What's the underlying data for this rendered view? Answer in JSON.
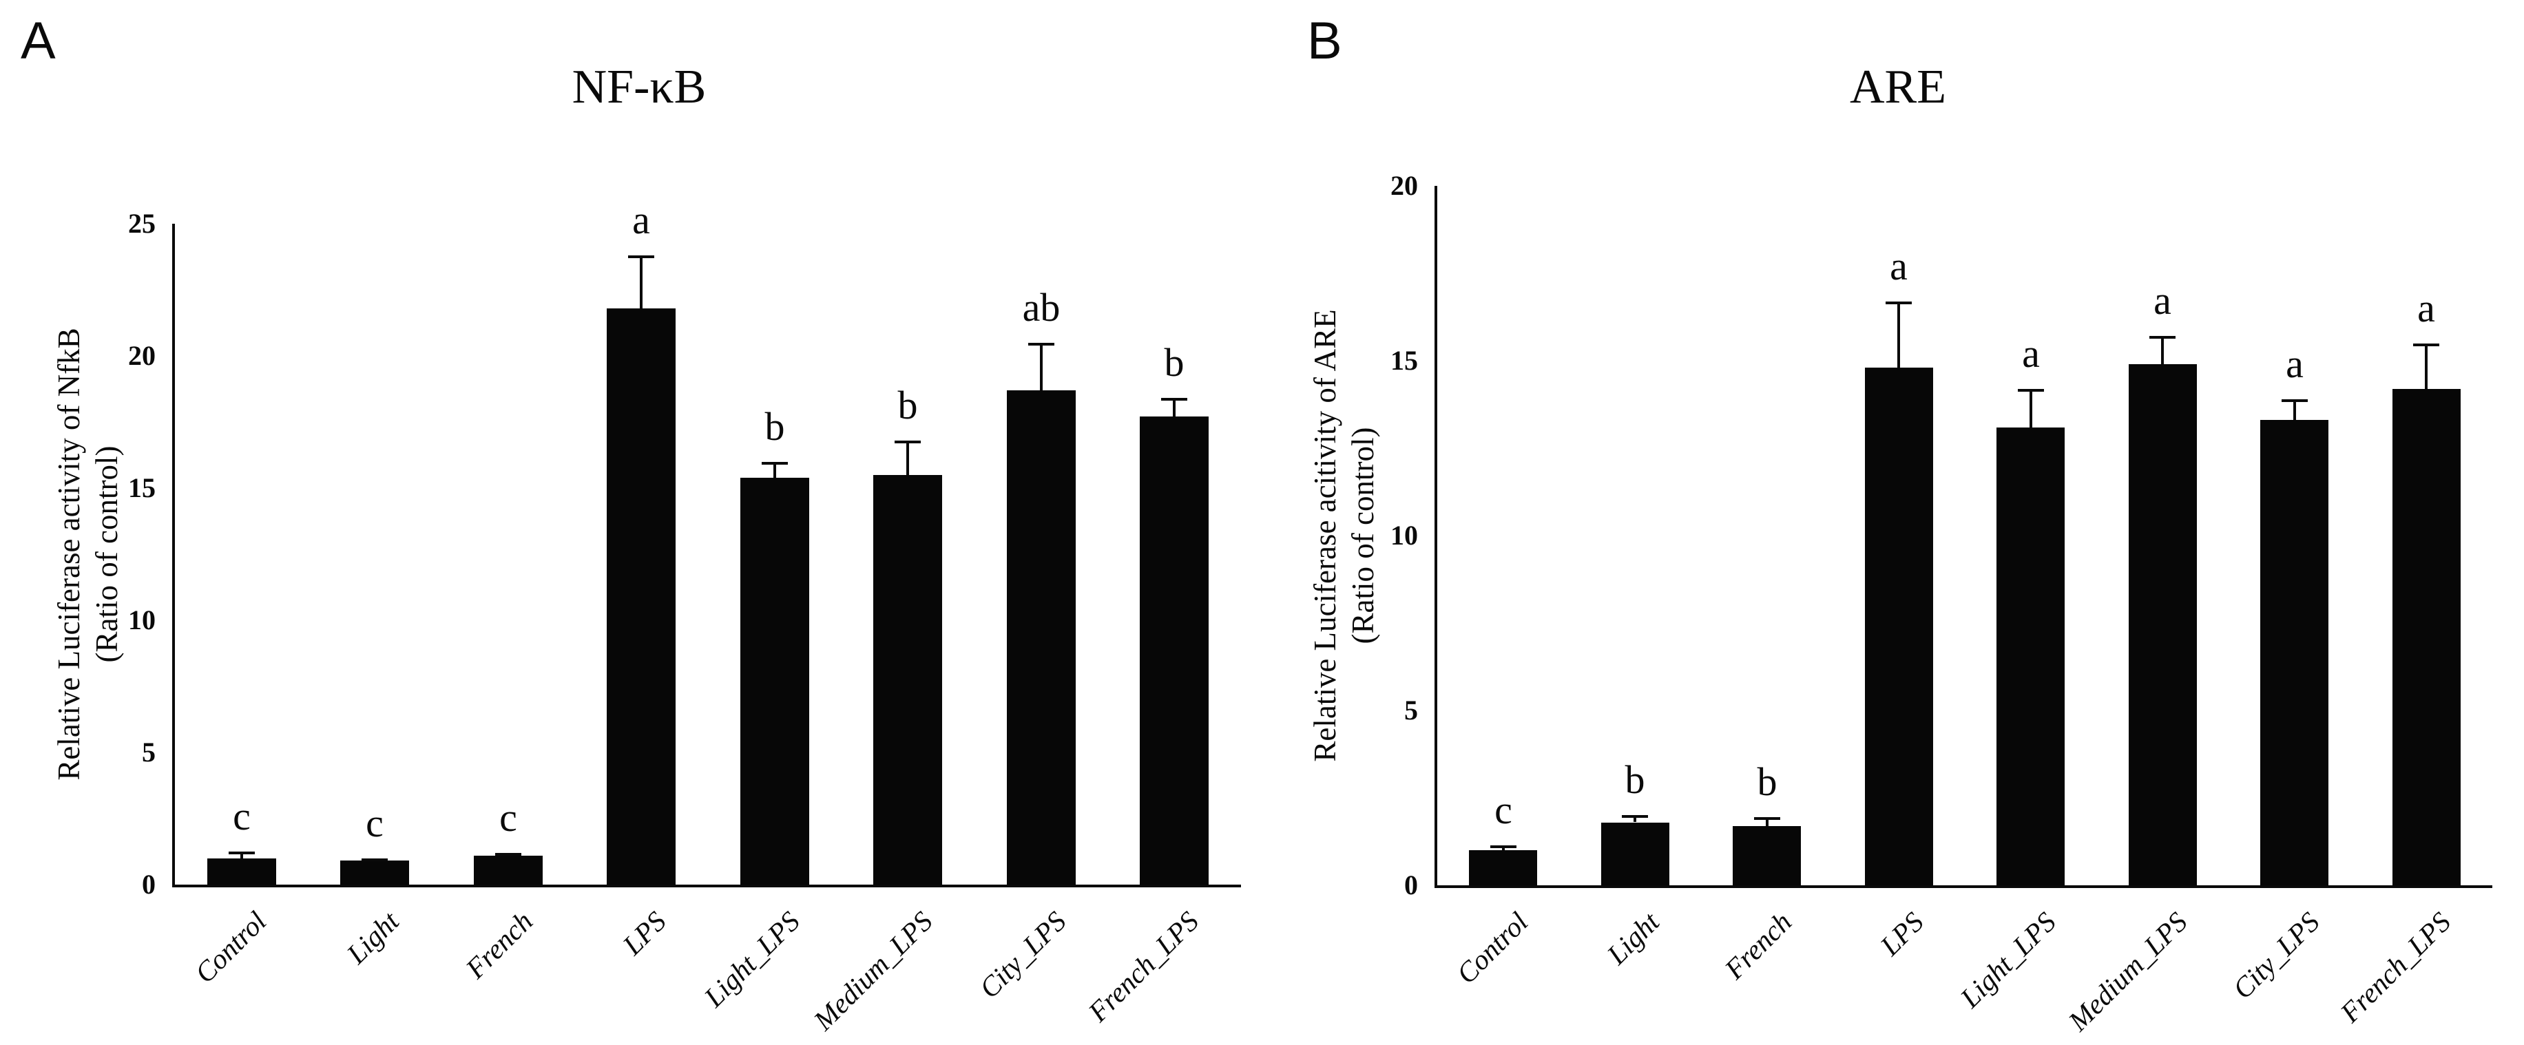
{
  "figure_background": "#ffffff",
  "bar_color": "#070707",
  "chart_data": [
    {
      "type": "bar",
      "panel": "A",
      "title": "NF-κB",
      "ylabel_lines": [
        "Relative Luciferase activity of NfkB",
        "(Ratio of control)"
      ],
      "categories": [
        "Control",
        "Light",
        "French",
        "LPS",
        "Light_LPS",
        "Medium_LPS",
        "City_LPS",
        "French_LPS"
      ],
      "values": [
        1.0,
        0.9,
        1.1,
        21.8,
        15.4,
        15.5,
        18.7,
        17.7
      ],
      "errors": [
        0.25,
        0.1,
        0.1,
        2.0,
        0.6,
        1.3,
        1.8,
        0.7
      ],
      "sig_letters": [
        "c",
        "c",
        "c",
        "a",
        "b",
        "b",
        "ab",
        "b"
      ],
      "xlabel": "",
      "ylim": [
        0,
        25
      ],
      "yticks": [
        0,
        5,
        10,
        15,
        20,
        25
      ],
      "grid": false,
      "legend": "none",
      "bar_color": "#070707"
    },
    {
      "type": "bar",
      "panel": "B",
      "title": "ARE",
      "ylabel_lines": [
        "Relative Luciferase acitivity of ARE",
        "(Ratio of control)"
      ],
      "categories": [
        "Control",
        "Light",
        "French",
        "LPS",
        "Light_LPS",
        "Medium_LPS",
        "City_LPS",
        "French_LPS"
      ],
      "values": [
        1.0,
        1.8,
        1.7,
        14.8,
        13.1,
        14.9,
        13.3,
        14.2
      ],
      "errors": [
        0.15,
        0.2,
        0.25,
        1.9,
        1.1,
        0.8,
        0.6,
        1.3
      ],
      "sig_letters": [
        "c",
        "b",
        "b",
        "a",
        "a",
        "a",
        "a",
        "a"
      ],
      "xlabel": "",
      "ylim": [
        0,
        20
      ],
      "yticks": [
        0,
        5,
        10,
        15,
        20
      ],
      "grid": false,
      "legend": "none",
      "bar_color": "#070707"
    }
  ]
}
